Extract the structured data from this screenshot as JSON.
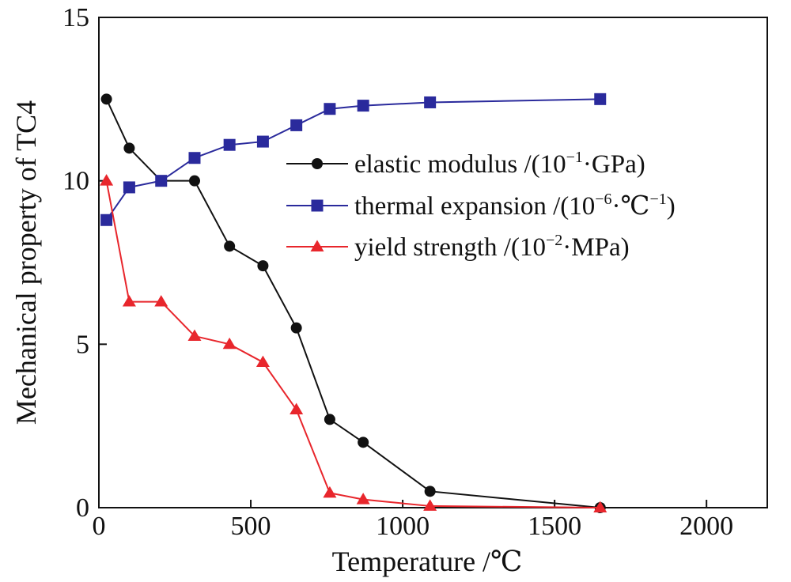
{
  "chart_data": {
    "type": "line",
    "title": "",
    "xlabel": "Temperature /℃",
    "ylabel": "Mechanical property of TC4",
    "xlim": [
      0,
      2200
    ],
    "ylim": [
      0,
      15
    ],
    "x_ticks": [
      0,
      500,
      1000,
      1500,
      2000
    ],
    "y_ticks": [
      0,
      5,
      10,
      15
    ],
    "x_tick_labels": [
      "0",
      "500",
      "1000",
      "1500",
      "2000"
    ],
    "y_tick_labels": [
      "0",
      "5",
      "10",
      "15"
    ],
    "grid": false,
    "legend_position": "upper-right",
    "series": [
      {
        "name": "elastic modulus",
        "legend_parts": {
          "text": "elastic modulus /(10",
          "exp1": "−1",
          "dot": "·",
          "unit": "GPa)",
          "exp2": "",
          "tail": ""
        },
        "color": "#111111",
        "marker": "circle",
        "x": [
          25,
          100,
          205,
          315,
          430,
          540,
          650,
          760,
          870,
          1090,
          1650
        ],
        "y": [
          12.5,
          11.0,
          10.0,
          10.0,
          8.0,
          7.4,
          5.5,
          2.7,
          2.0,
          0.5,
          0.0
        ]
      },
      {
        "name": "thermal expansion",
        "legend_parts": {
          "text": "thermal expansion /(10",
          "exp1": "−6",
          "dot": "·",
          "unit": "℃",
          "exp2": "−1",
          "tail": ")"
        },
        "color": "#2a2a9c",
        "marker": "square",
        "x": [
          25,
          100,
          205,
          315,
          430,
          540,
          650,
          760,
          870,
          1090,
          1650
        ],
        "y": [
          8.8,
          9.8,
          10.0,
          10.7,
          11.1,
          11.2,
          11.7,
          12.2,
          12.3,
          12.4,
          12.5
        ]
      },
      {
        "name": "yield strength",
        "legend_parts": {
          "text": "yield strength /(10",
          "exp1": "−2",
          "dot": "·",
          "unit": "MPa)",
          "exp2": "",
          "tail": ""
        },
        "color": "#e8262c",
        "marker": "triangle",
        "x": [
          25,
          100,
          205,
          315,
          430,
          540,
          650,
          760,
          870,
          1090,
          1650
        ],
        "y": [
          10.0,
          6.3,
          6.3,
          5.25,
          5.0,
          4.45,
          3.0,
          0.45,
          0.25,
          0.05,
          0.0
        ]
      }
    ]
  }
}
